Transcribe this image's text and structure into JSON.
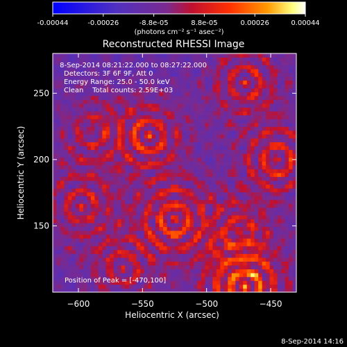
{
  "chart_data": {
    "type": "heatmap",
    "title": "Reconstructed RHESSI Image",
    "xlabel": "Heliocentric X (arcsec)",
    "ylabel": "Heliocentric Y (arcsec)",
    "xlim": [
      -620,
      -430
    ],
    "ylim": [
      100,
      280
    ],
    "xticks": [
      -600,
      -550,
      -500,
      -450
    ],
    "yticks": [
      150,
      200,
      250
    ],
    "colorbar": {
      "ticks": [
        "-0.00044",
        "-0.00026",
        "-8.8e-05",
        "8.8e-05",
        "0.00026",
        "0.00044"
      ],
      "unit": "(photons cm⁻² s⁻¹ asec⁻²)",
      "range": [
        -0.00044,
        0.00044
      ]
    },
    "annotations": [
      " 8-Sep-2014 08:21:22.000 to 08:27:22.000",
      "Detectors: 3F 6F 9F, Att 0",
      "Energy Range: 25.0 - 50.0 keV",
      "Clean    Total counts: 2.59E+03"
    ],
    "peak_label": "Position of Peak = [-470,100]",
    "peak": [
      -470,
      100
    ],
    "grid": false,
    "sources": [
      {
        "x": -545,
        "y": 218,
        "amp": 0.0003
      },
      {
        "x": -525,
        "y": 155,
        "amp": 0.00032
      },
      {
        "x": -445,
        "y": 200,
        "amp": 0.0003
      },
      {
        "x": -470,
        "y": 258,
        "amp": 0.00026
      },
      {
        "x": -598,
        "y": 165,
        "amp": 0.00024
      },
      {
        "x": -590,
        "y": 222,
        "amp": 0.00018
      },
      {
        "x": -565,
        "y": 118,
        "amp": 0.00022
      },
      {
        "x": -470,
        "y": 104,
        "amp": 0.00044
      },
      {
        "x": -475,
        "y": 145,
        "amp": 0.00022
      }
    ],
    "colors": [
      "#0000ff",
      "#3a2bd0",
      "#6a2aa8",
      "#b02040",
      "#e01a00",
      "#ff5a00",
      "#ffb000",
      "#ffff90",
      "#ffffff"
    ]
  },
  "footer": {
    "timestamp": "8-Sep-2014 14:16"
  }
}
